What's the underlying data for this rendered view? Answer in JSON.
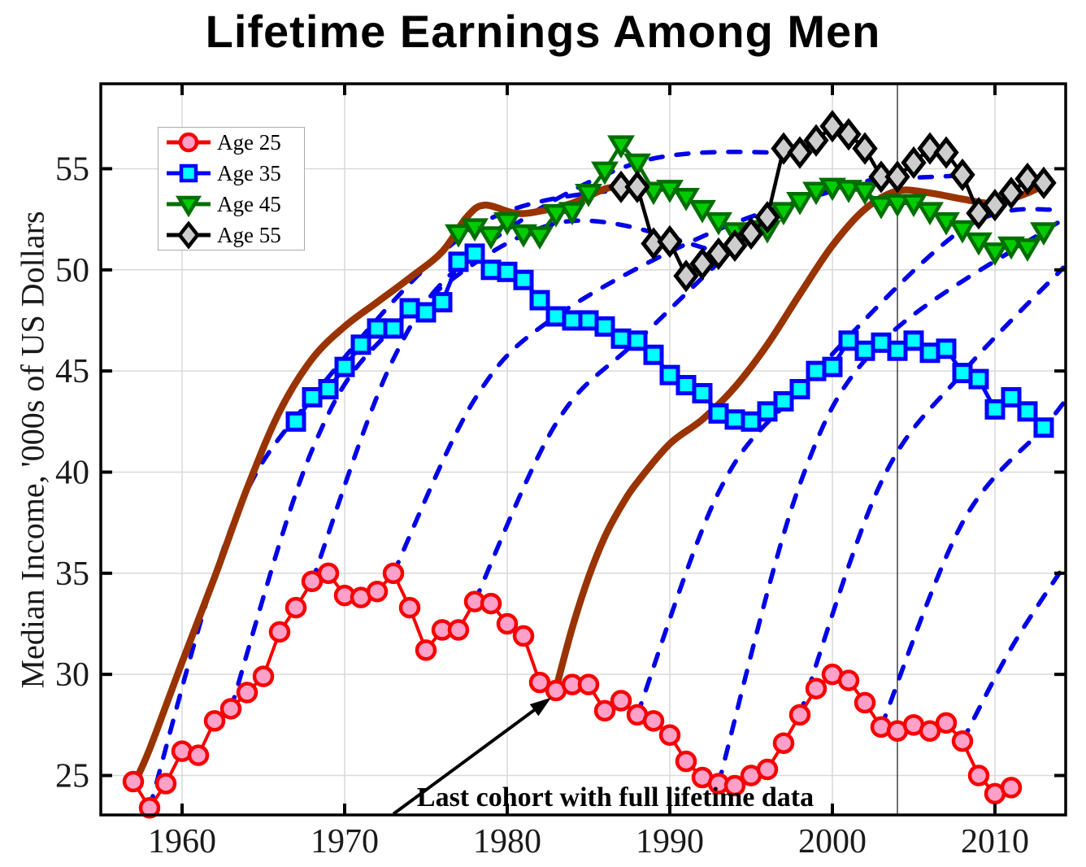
{
  "chart_data": {
    "type": "line",
    "title": "Lifetime Earnings Among Men",
    "xlabel": "",
    "ylabel": "Median Income, '000s of US Dollars",
    "xlim": [
      1955,
      2014.35
    ],
    "ylim": [
      23.05,
      59.2
    ],
    "x_ticks": [
      1960,
      1970,
      1980,
      1990,
      2000,
      2010
    ],
    "y_ticks": [
      25,
      30,
      35,
      40,
      45,
      50,
      55
    ],
    "grid": true,
    "legend_position": "upper-left",
    "vertical_reference_line_x": 2004,
    "colors": {
      "grid": "#d9d9d9",
      "spine": "#000000",
      "cohort_dashed": "#0000e8",
      "brown_cohort": "#993300",
      "reference_line": "#333333",
      "tick_label": "#1a1a1a"
    },
    "series": [
      {
        "label": "Age 25",
        "start_year": 1957,
        "marker": "circle",
        "line_color": "#f80000",
        "marker_face": "#ffa0c8",
        "marker_edge": "#f80000",
        "line_width": 4,
        "values": [
          24.7,
          23.4,
          24.6,
          26.2,
          26.0,
          27.7,
          28.3,
          29.1,
          29.9,
          32.1,
          33.3,
          34.6,
          35.0,
          33.9,
          33.8,
          34.1,
          35.0,
          33.3,
          31.2,
          32.2,
          32.2,
          33.6,
          33.5,
          32.5,
          31.9,
          29.6,
          29.2,
          29.5,
          29.5,
          28.2,
          28.7,
          28.0,
          27.7,
          27.0,
          25.7,
          24.9,
          24.6,
          24.5,
          25.0,
          25.3,
          26.6,
          28.0,
          29.3,
          30.0,
          29.7,
          28.6,
          27.4,
          27.2,
          27.5,
          27.2,
          27.6,
          26.7,
          25.0,
          24.1,
          24.4
        ]
      },
      {
        "label": "Age 35",
        "start_year": 1967,
        "marker": "square",
        "line_color": "#0000ff",
        "marker_face": "#00ffff",
        "marker_edge": "#0000ff",
        "line_width": 5,
        "values": [
          42.5,
          43.7,
          44.1,
          45.2,
          46.3,
          47.1,
          47.1,
          48.1,
          47.9,
          48.4,
          50.4,
          50.8,
          50.0,
          49.9,
          49.5,
          48.5,
          47.7,
          47.5,
          47.5,
          47.2,
          46.6,
          46.5,
          45.8,
          44.8,
          44.3,
          43.9,
          42.9,
          42.6,
          42.5,
          43.0,
          43.5,
          44.1,
          45.0,
          45.2,
          46.5,
          46.0,
          46.4,
          46.0,
          46.5,
          45.9,
          46.1,
          44.9,
          44.6,
          43.1,
          43.7,
          43.0,
          42.2
        ]
      },
      {
        "label": "Age 45",
        "start_year": 1977,
        "marker": "triangle-down",
        "line_color": "#006e00",
        "marker_face": "#00cc00",
        "marker_edge": "#006e00",
        "line_width": 4.5,
        "values": [
          51.8,
          52.1,
          51.7,
          52.4,
          51.8,
          51.7,
          52.8,
          52.9,
          53.8,
          54.9,
          56.2,
          55.3,
          53.9,
          54.0,
          53.6,
          53.0,
          52.4,
          51.9,
          51.7,
          52.0,
          52.9,
          53.4,
          53.9,
          54.1,
          54.0,
          53.9,
          53.2,
          53.3,
          53.3,
          52.9,
          52.4,
          52.0,
          51.4,
          50.9,
          51.2,
          51.1,
          51.9
        ]
      },
      {
        "label": "Age 55",
        "start_year": 1987,
        "marker": "diamond",
        "line_color": "#000000",
        "marker_face": "#cdcdcd",
        "marker_edge": "#000000",
        "line_width": 4.5,
        "values": [
          54.1,
          54.1,
          51.3,
          51.4,
          49.7,
          50.3,
          50.8,
          51.2,
          51.8,
          52.6,
          56.0,
          55.8,
          56.4,
          57.1,
          56.7,
          56.0,
          54.6,
          54.6,
          55.3,
          56.0,
          55.8,
          54.7,
          52.8,
          53.2,
          53.8,
          54.5,
          54.3
        ]
      }
    ],
    "cohort_profiles_dashed": {
      "description": "Dashed blue life-cycle profiles of selected cohorts (age 25 to 55)",
      "curves": [
        {
          "label": "cohort-1958",
          "points": [
            [
              1958,
              23.4
            ],
            [
              1963,
              37.2
            ],
            [
              1968,
              43.7
            ],
            [
              1978,
              52.1
            ],
            [
              1988,
              54.1
            ]
          ]
        },
        {
          "label": "cohort-1963",
          "points": [
            [
              1963,
              28.3
            ],
            [
              1968,
              41.1
            ],
            [
              1973,
              47.1
            ],
            [
              1983,
              52.3
            ],
            [
              1993,
              50.9
            ]
          ]
        },
        {
          "label": "cohort-1968",
          "points": [
            [
              1968,
              34.6
            ],
            [
              1973,
              45.6
            ],
            [
              1978,
              50.8
            ],
            [
              1988,
              55.3
            ],
            [
              1998,
              55.8
            ]
          ]
        },
        {
          "label": "cohort-1973",
          "points": [
            [
              1973,
              35.0
            ],
            [
              1978,
              43.6
            ],
            [
              1983,
              47.7
            ],
            [
              1993,
              52.0
            ],
            [
              2003,
              54.6
            ]
          ]
        },
        {
          "label": "cohort-1978",
          "points": [
            [
              1978,
              33.6
            ],
            [
              1983,
              42.4
            ],
            [
              1988,
              46.5
            ],
            [
              1998,
              53.4
            ],
            [
              2008,
              54.7
            ]
          ]
        },
        {
          "label": "cohort-1988",
          "points": [
            [
              1988,
              28.0
            ],
            [
              1993,
              39.0
            ],
            [
              1998,
              44.1
            ],
            [
              2008,
              52.0
            ],
            [
              2014.2,
              53.0
            ]
          ]
        },
        {
          "label": "cohort-1993",
          "points": [
            [
              1993,
              24.6
            ],
            [
              1998,
              39.4
            ],
            [
              2003,
              46.4
            ],
            [
              2013,
              51.9
            ],
            [
              2014.2,
              52.3
            ]
          ]
        },
        {
          "label": "cohort-1998",
          "points": [
            [
              1998,
              28.0
            ],
            [
              2003,
              39.5
            ],
            [
              2008,
              44.9
            ],
            [
              2014.2,
              50.1
            ]
          ]
        },
        {
          "label": "cohort-2003",
          "points": [
            [
              2003,
              27.4
            ],
            [
              2008,
              37.5
            ],
            [
              2013,
              42.2
            ],
            [
              2014.2,
              43.4
            ]
          ]
        },
        {
          "label": "cohort-2008",
          "points": [
            [
              2008,
              26.7
            ],
            [
              2011,
              31.3
            ],
            [
              2014.2,
              35.3
            ]
          ]
        }
      ]
    },
    "brown_cohort_lines": {
      "description": "Thick brown lines: first and last cohorts with full lifetime data",
      "curves": [
        {
          "label": "first-full-cohort-1957",
          "points": [
            [
              1957,
              24.5
            ],
            [
              1958,
              26.3
            ],
            [
              1960,
              30.6
            ],
            [
              1962,
              34.8
            ],
            [
              1964,
              39.2
            ],
            [
              1966,
              43.0
            ],
            [
              1968,
              45.6
            ],
            [
              1970,
              47.2
            ],
            [
              1972,
              48.4
            ],
            [
              1974,
              49.6
            ],
            [
              1976,
              50.9
            ],
            [
              1977.5,
              52.6
            ],
            [
              1978.6,
              53.2
            ],
            [
              1980.5,
              52.8
            ],
            [
              1982,
              52.9
            ],
            [
              1984,
              53.3
            ],
            [
              1986,
              54.0
            ],
            [
              1987,
              54.1
            ]
          ]
        },
        {
          "label": "last-full-cohort-1983",
          "points": [
            [
              1983,
              29.3
            ],
            [
              1984,
              32.3
            ],
            [
              1985,
              34.8
            ],
            [
              1986,
              36.8
            ],
            [
              1987,
              38.3
            ],
            [
              1988,
              39.5
            ],
            [
              1990,
              41.4
            ],
            [
              1992,
              42.6
            ],
            [
              1994,
              44.2
            ],
            [
              1996,
              46.3
            ],
            [
              1998,
              48.8
            ],
            [
              2000,
              51.2
            ],
            [
              2002,
              53.0
            ],
            [
              2004,
              53.9
            ],
            [
              2006,
              53.8
            ],
            [
              2008,
              53.5
            ],
            [
              2010,
              53.3
            ],
            [
              2012,
              53.8
            ],
            [
              2013,
              54.2
            ]
          ]
        }
      ]
    },
    "annotation": {
      "text": "Last cohort with full lifetime data",
      "arrow_from": [
        1973.0,
        23.1
      ],
      "arrow_to": [
        1982.7,
        28.85
      ]
    }
  }
}
